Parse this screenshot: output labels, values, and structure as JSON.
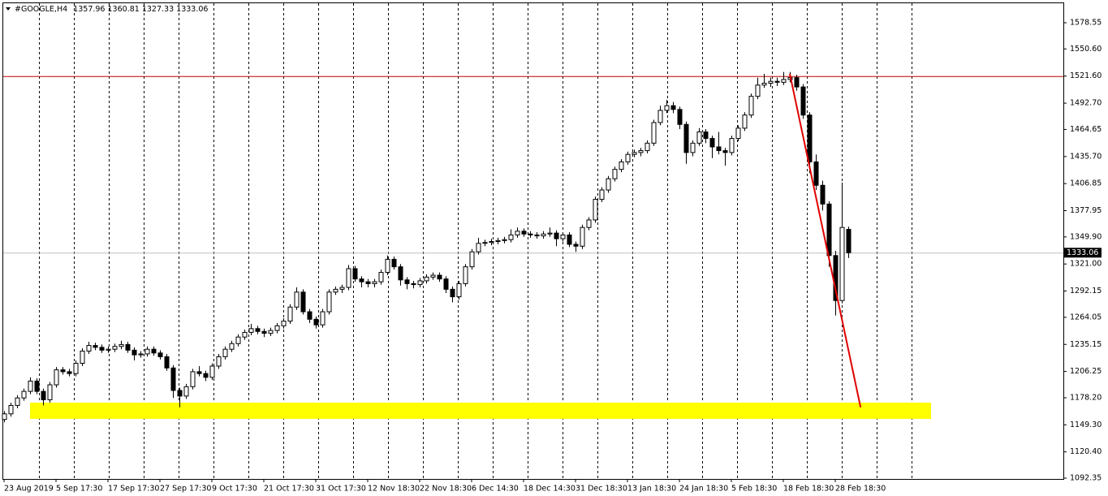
{
  "chart_data": {
    "type": "candlestick",
    "title": "#GOOGLE,H4",
    "ylim": [
      1091.5,
      1598.5
    ],
    "yticks": [
      1578.55,
      {
        "value": 1550.6,
        "label": "1550.60"
      },
      {
        "value": 1521.6,
        "label": "1521.60"
      },
      {
        "value": 1492.7,
        "label": "1492.70"
      },
      1464.65,
      {
        "value": 1435.7,
        "label": "1435.70"
      },
      1406.85,
      1377.95,
      {
        "value": 1349.9,
        "label": "1349.90"
      },
      {
        "value": 1321.0,
        "label": "1321.00"
      },
      1292.15,
      1264.05,
      1235.15,
      1206.25,
      {
        "value": 1178.2,
        "label": "1178.20"
      },
      {
        "value": 1149.3,
        "label": "1149.30"
      },
      {
        "value": 1120.4,
        "label": "1120.40"
      },
      1092.35
    ],
    "xticks": [
      {
        "value": 0,
        "label": "23 Aug 2019"
      },
      {
        "value": 8,
        "label": "5 Sep 17:30"
      },
      {
        "value": 16,
        "label": "17 Sep 17:30"
      },
      {
        "value": 24,
        "label": "27 Sep 17:30"
      },
      {
        "value": 32,
        "label": "9 Oct 17:30"
      },
      {
        "value": 40,
        "label": "21 Oct 17:30"
      },
      {
        "value": 48,
        "label": "31 Oct 17:30"
      },
      {
        "value": 56,
        "label": "12 Nov 18:30"
      },
      {
        "value": 64,
        "label": "22 Nov 18:30"
      },
      {
        "value": 72,
        "label": "6 Dec 14:30"
      },
      {
        "value": 80,
        "label": "18 Dec 14:30"
      },
      {
        "value": 88,
        "label": "31 Dec 18:30"
      },
      {
        "value": 96,
        "label": "13 Jan 18:30"
      },
      {
        "value": 104,
        "label": "24 Jan 18:30"
      },
      {
        "value": 112,
        "label": "5 Feb 18:30"
      },
      {
        "value": 120,
        "label": "18 Feb 18:30"
      },
      {
        "value": 128,
        "label": "28 Feb 18:30"
      }
    ],
    "open": [
      1155,
      1161,
      1170,
      1178,
      1185,
      1196,
      1185,
      1176,
      1192,
      1208,
      1206,
      1204,
      1215,
      1228,
      1234,
      1232,
      1229,
      1230,
      1233,
      1235,
      1229,
      1224,
      1225,
      1230,
      1226,
      1222,
      1210,
      1186,
      1180,
      1190,
      1206,
      1204,
      1200,
      1212,
      1222,
      1230,
      1236,
      1243,
      1248,
      1252,
      1249,
      1247,
      1250,
      1255,
      1260,
      1275,
      1291,
      1270,
      1262,
      1256,
      1270,
      1291,
      1294,
      1296,
      1316,
      1305,
      1302,
      1300,
      1302,
      1312,
      1326,
      1318,
      1304,
      1300,
      1299,
      1303,
      1307,
      1309,
      1305,
      1294,
      1286,
      1300,
      1318,
      1334,
      1343,
      1344,
      1345,
      1346,
      1347,
      1352,
      1356,
      1353,
      1352,
      1351,
      1353,
      1354,
      1348,
      1352,
      1342,
      1340,
      1360,
      1368,
      1390,
      1400,
      1412,
      1422,
      1430,
      1438,
      1440,
      1442,
      1450,
      1472,
      1485,
      1490,
      1486,
      1470,
      1440,
      1450,
      1462,
      1455,
      1446,
      1442,
      1440,
      1455,
      1466,
      1480,
      1500,
      1512,
      1514,
      1516,
      1515,
      1518,
      1520,
      1510,
      1480,
      1430,
      1405,
      1385,
      1330,
      1282,
      1357.96
    ],
    "high": [
      1164,
      1173,
      1181,
      1188,
      1200,
      1199,
      1188,
      1195,
      1211,
      1211,
      1209,
      1218,
      1231,
      1238,
      1237,
      1235,
      1233,
      1236,
      1239,
      1238,
      1232,
      1228,
      1233,
      1233,
      1229,
      1225,
      1213,
      1189,
      1193,
      1209,
      1212,
      1207,
      1215,
      1225,
      1233,
      1239,
      1246,
      1251,
      1257,
      1255,
      1252,
      1253,
      1258,
      1263,
      1278,
      1296,
      1294,
      1273,
      1265,
      1273,
      1294,
      1297,
      1299,
      1320,
      1319,
      1308,
      1305,
      1305,
      1315,
      1330,
      1329,
      1321,
      1307,
      1303,
      1306,
      1310,
      1312,
      1312,
      1308,
      1297,
      1303,
      1321,
      1337,
      1349,
      1347,
      1348,
      1349,
      1350,
      1358,
      1360,
      1359,
      1356,
      1355,
      1356,
      1360,
      1357,
      1355,
      1355,
      1345,
      1363,
      1371,
      1393,
      1403,
      1415,
      1425,
      1433,
      1441,
      1443,
      1445,
      1453,
      1475,
      1490,
      1496,
      1494,
      1489,
      1473,
      1453,
      1466,
      1465,
      1458,
      1462,
      1445,
      1458,
      1469,
      1483,
      1503,
      1520,
      1524,
      1520,
      1520,
      1526,
      1526,
      1523,
      1513,
      1483,
      1438,
      1410,
      1388,
      1335,
      1408,
      1360.81
    ],
    "low": [
      1152,
      1158,
      1167,
      1175,
      1182,
      1182,
      1170,
      1173,
      1189,
      1203,
      1201,
      1201,
      1212,
      1225,
      1229,
      1226,
      1226,
      1227,
      1230,
      1226,
      1218,
      1221,
      1222,
      1223,
      1219,
      1207,
      1178,
      1168,
      1177,
      1187,
      1201,
      1196,
      1197,
      1209,
      1219,
      1227,
      1233,
      1240,
      1245,
      1246,
      1243,
      1244,
      1247,
      1252,
      1257,
      1272,
      1267,
      1258,
      1252,
      1253,
      1267,
      1288,
      1290,
      1293,
      1302,
      1296,
      1296,
      1296,
      1299,
      1309,
      1315,
      1298,
      1294,
      1295,
      1296,
      1300,
      1304,
      1302,
      1290,
      1280,
      1283,
      1297,
      1315,
      1331,
      1340,
      1341,
      1342,
      1343,
      1344,
      1349,
      1350,
      1349,
      1348,
      1348,
      1350,
      1340,
      1345,
      1339,
      1334,
      1337,
      1357,
      1365,
      1387,
      1397,
      1409,
      1419,
      1427,
      1435,
      1436,
      1439,
      1447,
      1469,
      1482,
      1482,
      1465,
      1428,
      1436,
      1447,
      1450,
      1434,
      1438,
      1426,
      1437,
      1452,
      1463,
      1477,
      1497,
      1509,
      1510,
      1511,
      1512,
      1515,
      1506,
      1476,
      1418,
      1400,
      1378,
      1318,
      1266,
      1279,
      1327.33
    ],
    "close": [
      1161,
      1170,
      1178,
      1185,
      1196,
      1185,
      1176,
      1192,
      1208,
      1206,
      1204,
      1215,
      1228,
      1234,
      1232,
      1229,
      1230,
      1233,
      1235,
      1229,
      1224,
      1225,
      1230,
      1226,
      1222,
      1210,
      1186,
      1180,
      1190,
      1206,
      1204,
      1200,
      1212,
      1222,
      1230,
      1236,
      1243,
      1248,
      1252,
      1249,
      1247,
      1250,
      1255,
      1260,
      1275,
      1291,
      1270,
      1262,
      1256,
      1270,
      1291,
      1294,
      1296,
      1316,
      1305,
      1302,
      1300,
      1302,
      1312,
      1326,
      1318,
      1304,
      1300,
      1299,
      1303,
      1307,
      1309,
      1305,
      1294,
      1286,
      1300,
      1318,
      1334,
      1343,
      1344,
      1345,
      1346,
      1347,
      1352,
      1356,
      1353,
      1352,
      1351,
      1353,
      1354,
      1348,
      1352,
      1342,
      1340,
      1360,
      1368,
      1390,
      1400,
      1412,
      1422,
      1430,
      1438,
      1440,
      1442,
      1450,
      1472,
      1485,
      1490,
      1486,
      1470,
      1440,
      1450,
      1462,
      1455,
      1446,
      1442,
      1440,
      1455,
      1466,
      1480,
      1500,
      1512,
      1514,
      1516,
      1515,
      1518,
      1520,
      1510,
      1480,
      1430,
      1405,
      1385,
      1330,
      1282,
      1360,
      1333.06
    ],
    "lines": [
      {
        "value": 1521.6,
        "color": "#c00000"
      },
      {
        "value": 1333.06,
        "color": "#c0c0c0"
      }
    ],
    "zone": {
      "low": 1155.6,
      "high": 1173,
      "start": 4,
      "end": 142.75,
      "color": "#ffff00"
    },
    "trendline": {
      "start": 121,
      "end": 131.9,
      "from": 1524,
      "to": 1168,
      "color": "#e00000"
    }
  }
}
